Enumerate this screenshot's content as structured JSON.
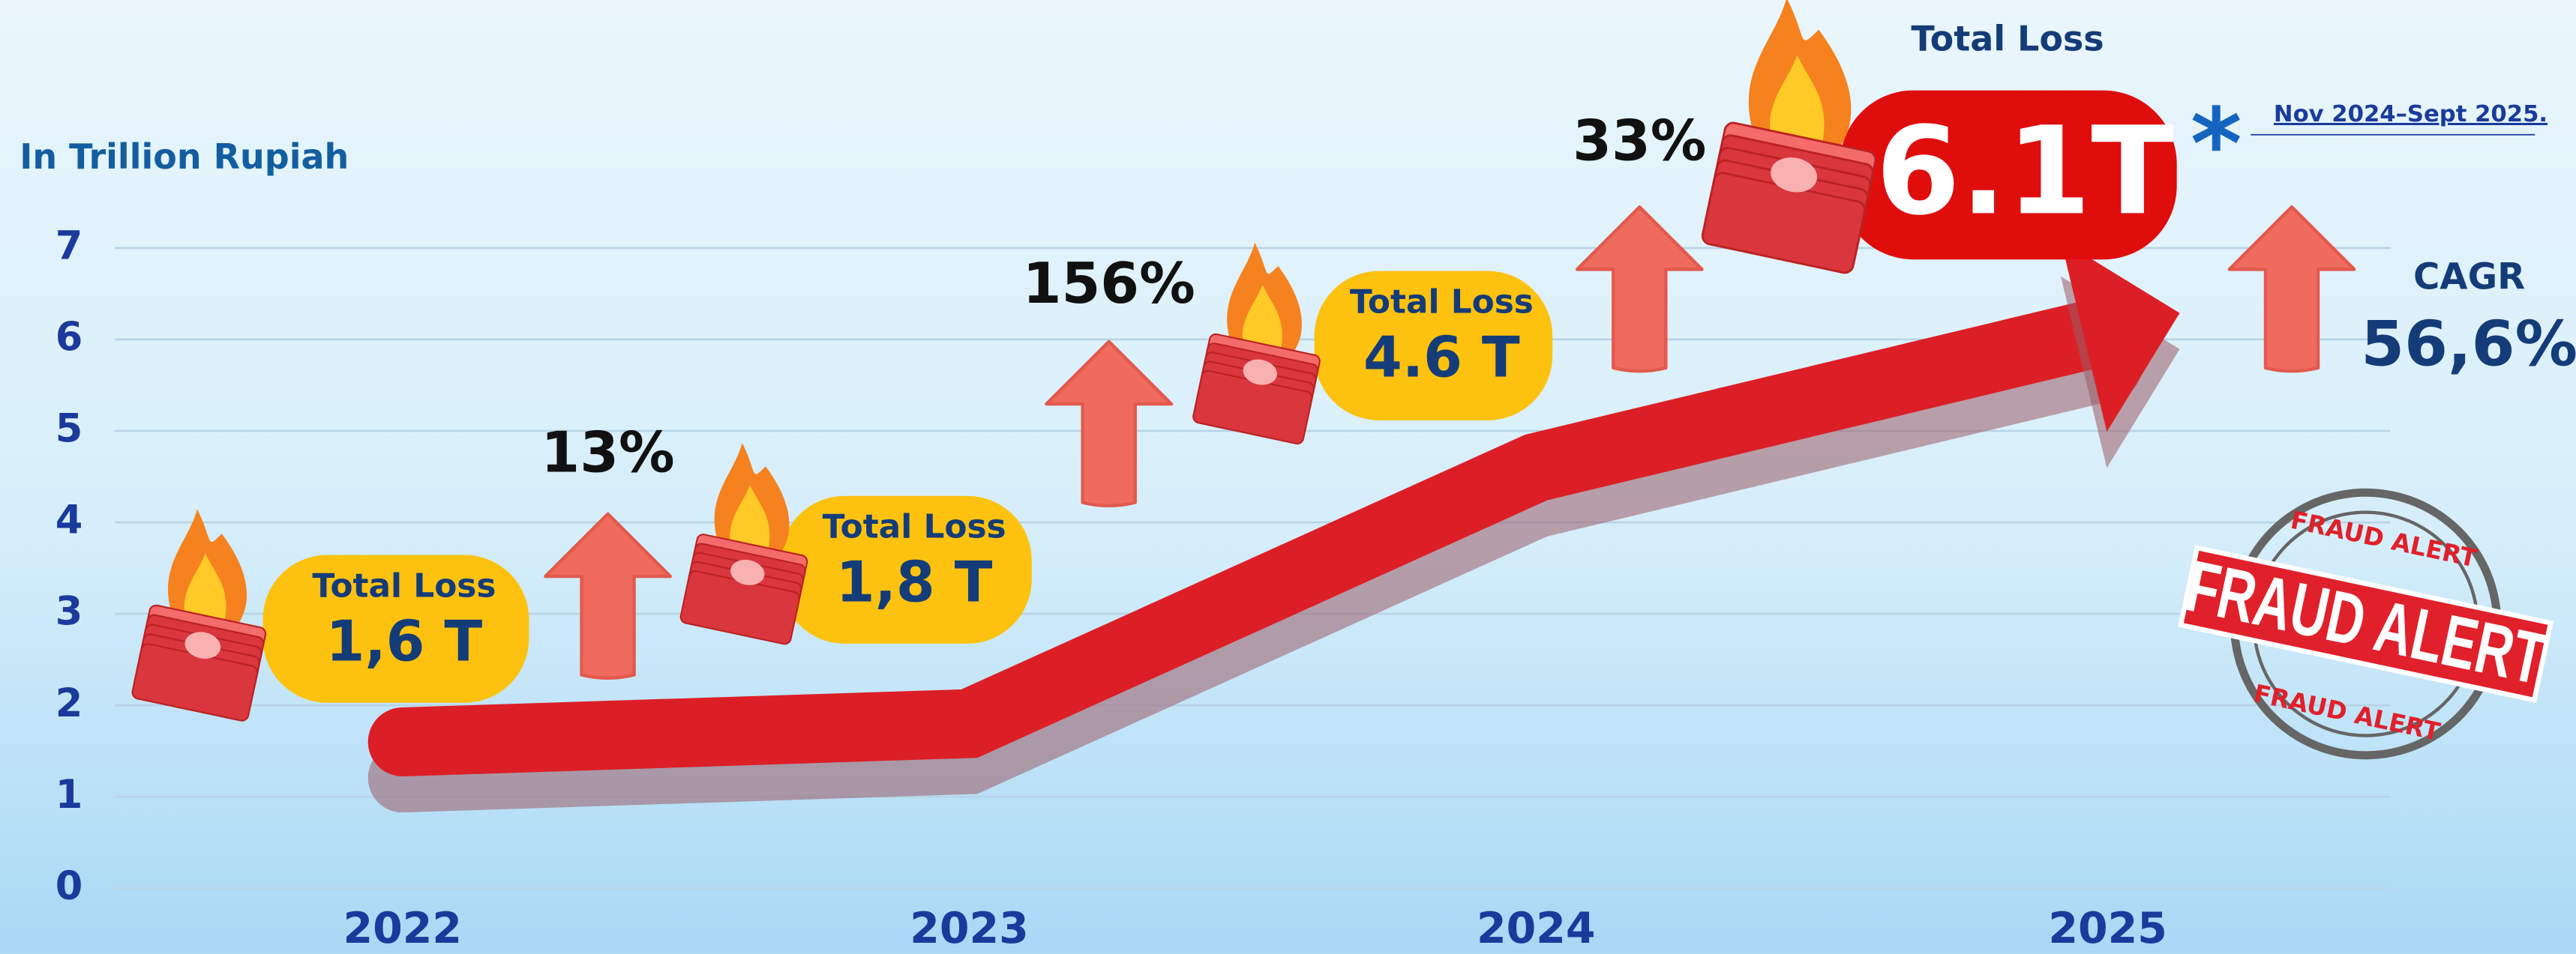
{
  "chart_data": {
    "type": "line",
    "y_axis_label": "In Trillion Rupiah",
    "categories": [
      "2022",
      "2023",
      "2024",
      "2025"
    ],
    "values": [
      1.6,
      1.8,
      4.6,
      6.1
    ],
    "value_labels": [
      "1,6 T",
      "1,8 T",
      "4.6 T",
      "6.1T"
    ],
    "value_title": "Total Loss",
    "color": "#dc1f26",
    "growth_labels": [
      "13%",
      "156%",
      "33%"
    ],
    "cagr_label": "CAGR",
    "cagr_value": "56,6%",
    "note_marker": "*",
    "note": "Nov 2024–Sept 2025.",
    "stamp": {
      "top": "FRAUD ALERT",
      "center": "FRAUD ALERT",
      "bottom": "FRAUD ALERT"
    },
    "ylim": [
      0,
      7
    ],
    "yticks": [
      0,
      1,
      2,
      3,
      4,
      5,
      6,
      7
    ],
    "grid": true
  }
}
